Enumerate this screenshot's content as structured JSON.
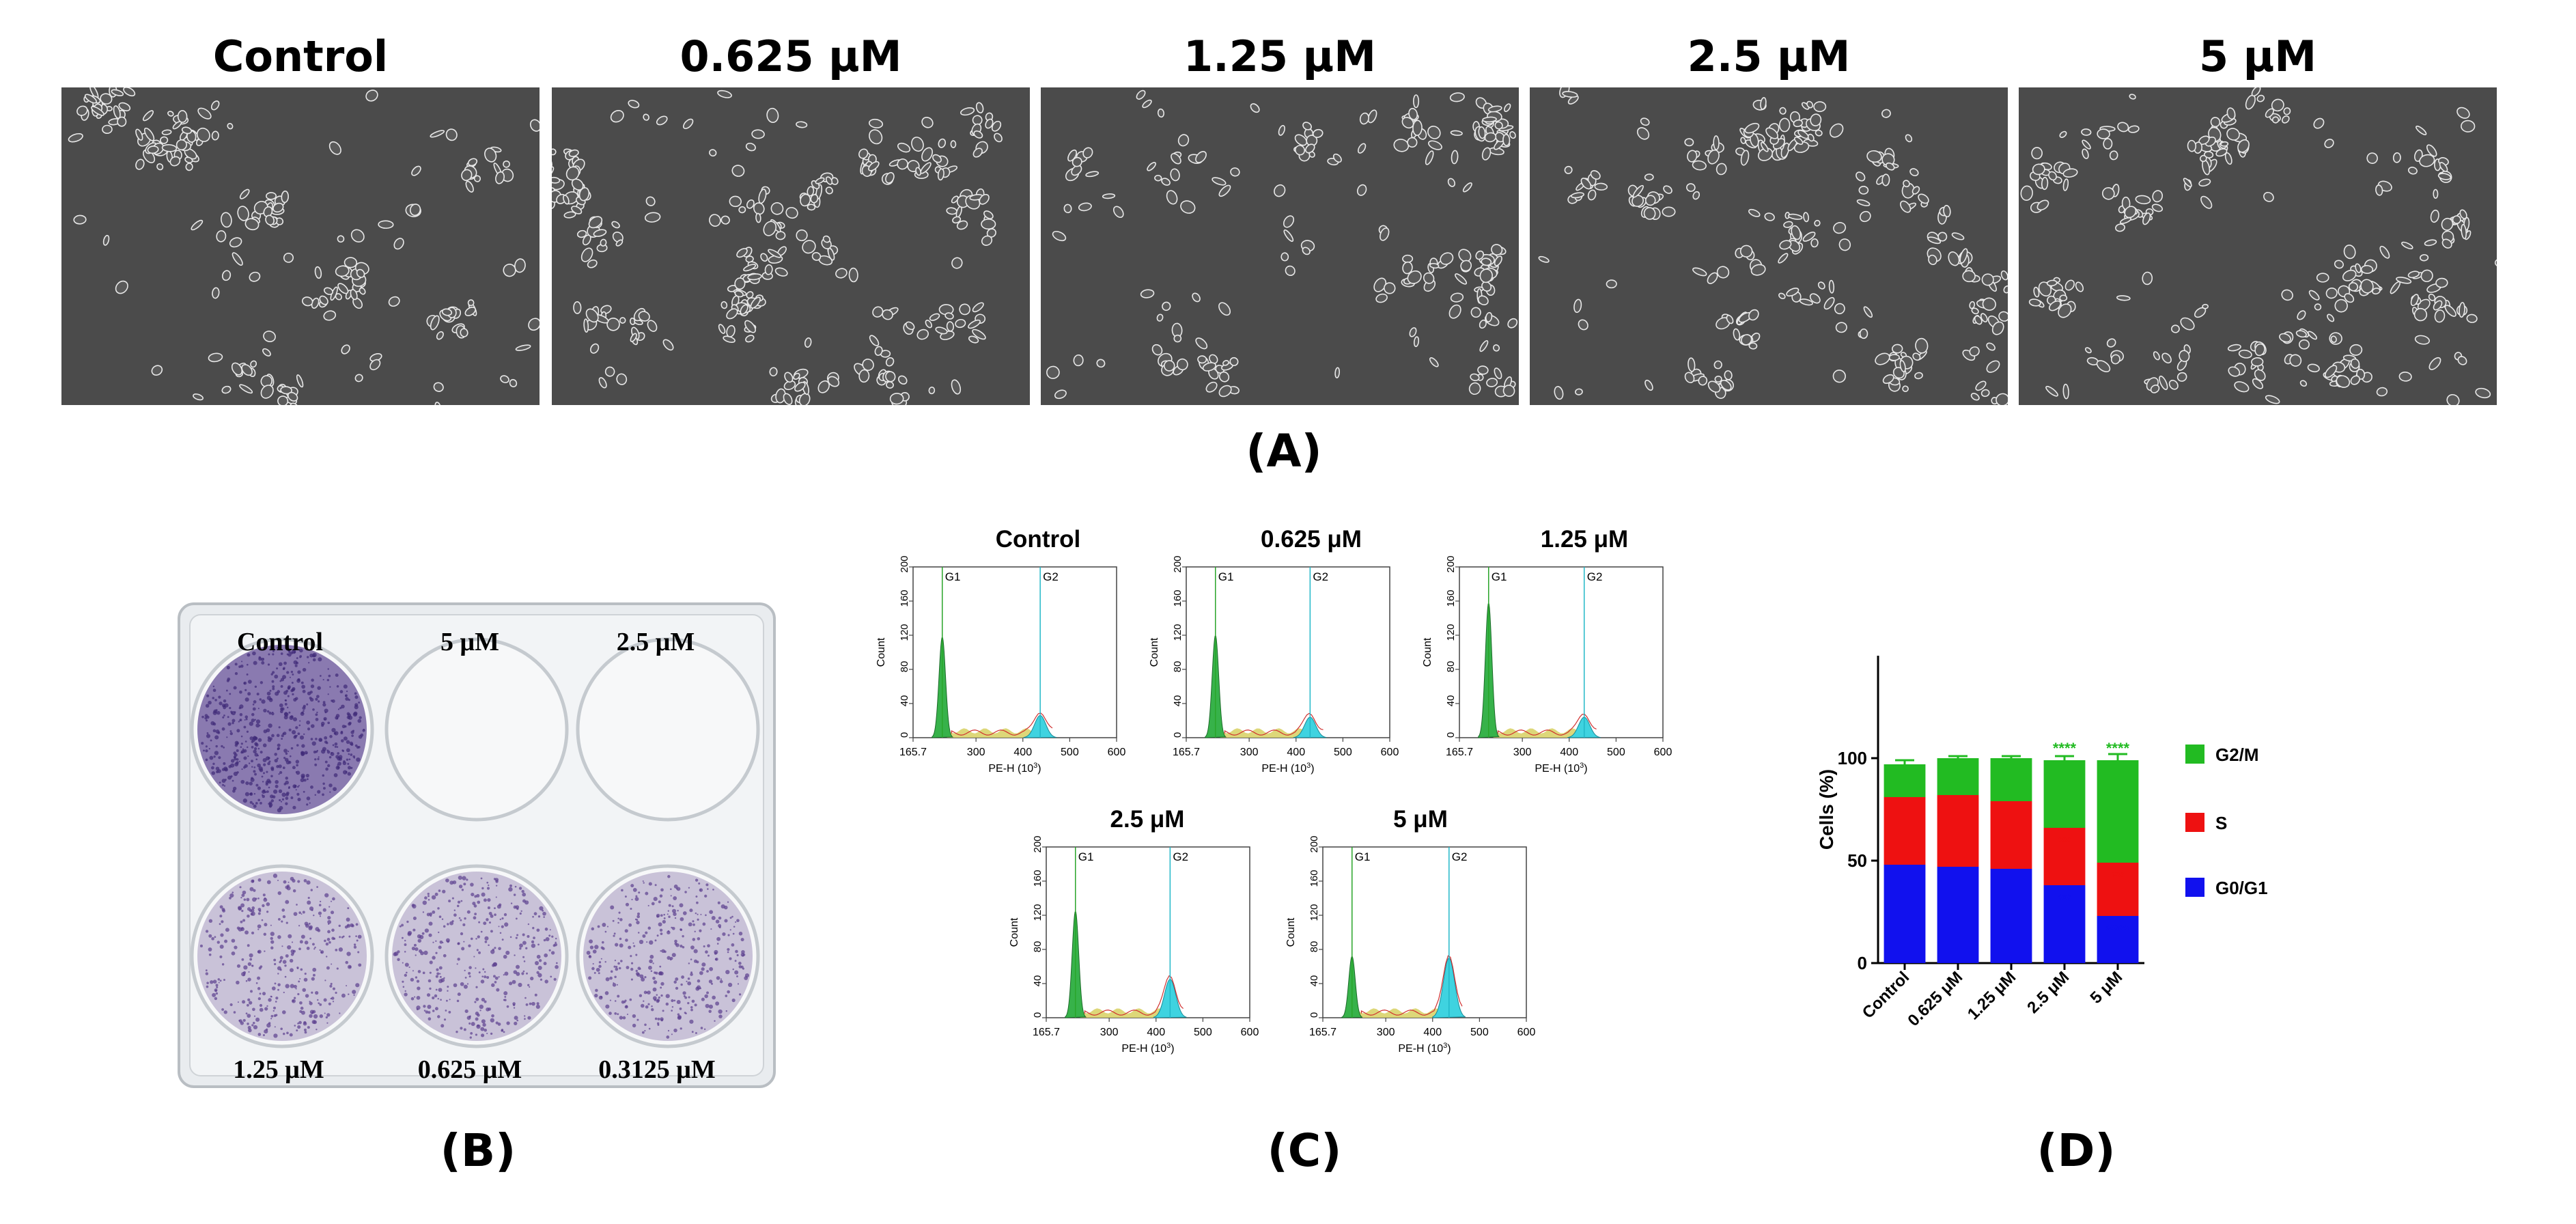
{
  "panel_a": {
    "label": "(A)",
    "titles": [
      "Control",
      "0.625 μM",
      "1.25 μM",
      "2.5 μM",
      "5 μM"
    ]
  },
  "panel_b": {
    "label": "(B)",
    "well_labels_top": [
      "Control",
      "5 μM",
      "2.5 μM"
    ],
    "well_labels_bottom": [
      "1.25 μM",
      "0.625 μM",
      "0.3125 μM"
    ]
  },
  "panel_c": {
    "label": "(C)",
    "titles": [
      "Control",
      "0.625 μM",
      "1.25 μM",
      "2.5 μM",
      "5 μM"
    ],
    "peak_labels": [
      "G1",
      "G2"
    ],
    "ylabel": "Count",
    "xlabel": "PE-H (10",
    "xlabel_sup": "3",
    "xlabel_end": ")",
    "x_ticks": [
      "165.7",
      "300",
      "400",
      "500",
      "600"
    ],
    "y_ticks": [
      "0",
      "40",
      "80",
      "120",
      "160",
      "200"
    ]
  },
  "panel_d": {
    "label": "(D)",
    "legend": [
      "G2/M",
      "S",
      "G0/G1"
    ]
  },
  "chart_data": [
    {
      "type": "line",
      "panel": "C",
      "xlabel": "PE-H (10^3)",
      "ylabel": "Count",
      "xlim": [
        165.7,
        600
      ],
      "ylim": [
        0,
        200
      ],
      "series": [
        {
          "name": "Control",
          "g1_peak": [
            228,
            118
          ],
          "g2_peak": [
            437,
            26
          ]
        },
        {
          "name": "0.625 μM",
          "g1_peak": [
            228,
            120
          ],
          "g2_peak": [
            430,
            24
          ]
        },
        {
          "name": "1.25 μM",
          "g1_peak": [
            228,
            158
          ],
          "g2_peak": [
            432,
            24
          ]
        },
        {
          "name": "2.5 μM",
          "g1_peak": [
            228,
            125
          ],
          "g2_peak": [
            430,
            45
          ]
        },
        {
          "name": "5 μM",
          "g1_peak": [
            228,
            72
          ],
          "g2_peak": [
            435,
            70
          ]
        }
      ]
    },
    {
      "type": "bar",
      "panel": "D",
      "stacked": true,
      "categories": [
        "Control",
        "0.625 μM",
        "1.25 μM",
        "2.5 μM",
        "5 μM"
      ],
      "ylabel": "Cells (%)",
      "ylim": [
        0,
        150
      ],
      "y_ticks": [
        0,
        50,
        100
      ],
      "colors": {
        "G2/M": "#22bb22",
        "S": "#ee1111",
        "G0/G1": "#1111ee"
      },
      "series": [
        {
          "name": "G0/G1",
          "values": [
            48,
            47,
            46,
            38,
            23
          ],
          "errors": [
            3,
            2,
            3,
            2,
            2
          ],
          "significance": [
            "",
            "",
            "",
            "**",
            "****"
          ]
        },
        {
          "name": "S",
          "values": [
            33,
            35,
            33,
            28,
            26
          ],
          "errors": [
            6,
            2,
            2,
            2,
            2
          ],
          "significance": [
            "",
            "",
            "",
            "**",
            "**"
          ]
        },
        {
          "name": "G2/M",
          "values": [
            16,
            18,
            21,
            33,
            50
          ],
          "errors": [
            2,
            1,
            1,
            2,
            3
          ],
          "significance": [
            "",
            "",
            "",
            "****",
            "****"
          ]
        }
      ]
    }
  ]
}
